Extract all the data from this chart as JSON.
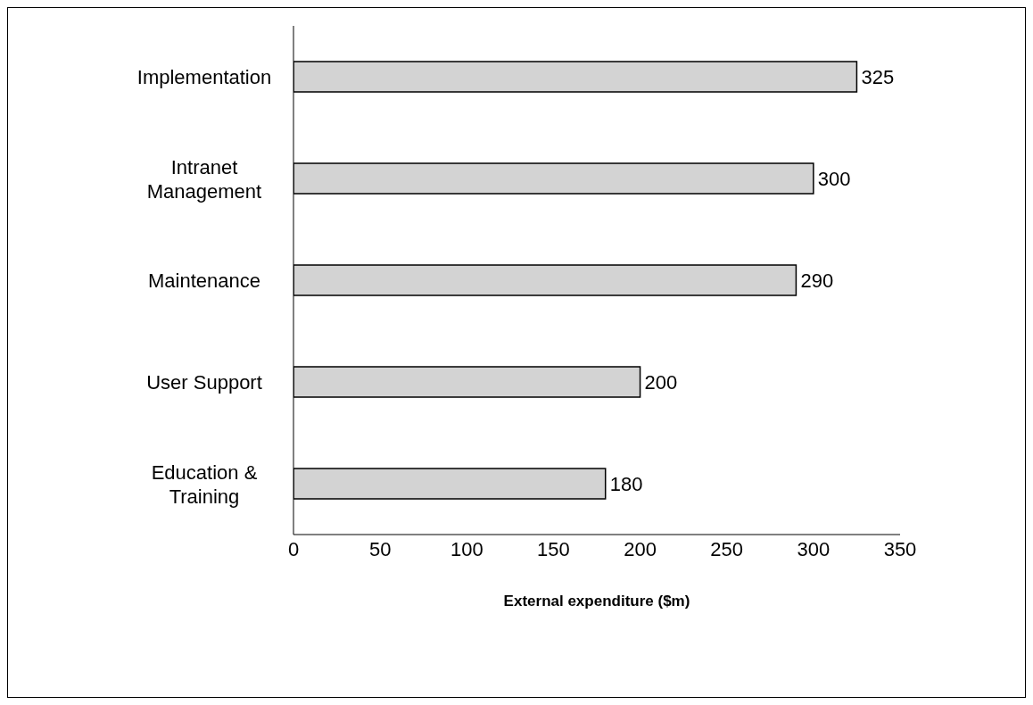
{
  "chart_data": {
    "type": "bar",
    "orientation": "horizontal",
    "categories": [
      "Implementation",
      "Intranet Management",
      "Maintenance",
      "User Support",
      "Education & Training"
    ],
    "values": [
      325,
      300,
      290,
      200,
      180
    ],
    "color": "#d3d3d3",
    "xlim": [
      0,
      350
    ],
    "xticks": [
      0,
      50,
      100,
      150,
      200,
      250,
      300,
      350
    ],
    "xlabel": "External expenditure ($m)",
    "data_labels": true,
    "grid": false,
    "legend": false
  }
}
